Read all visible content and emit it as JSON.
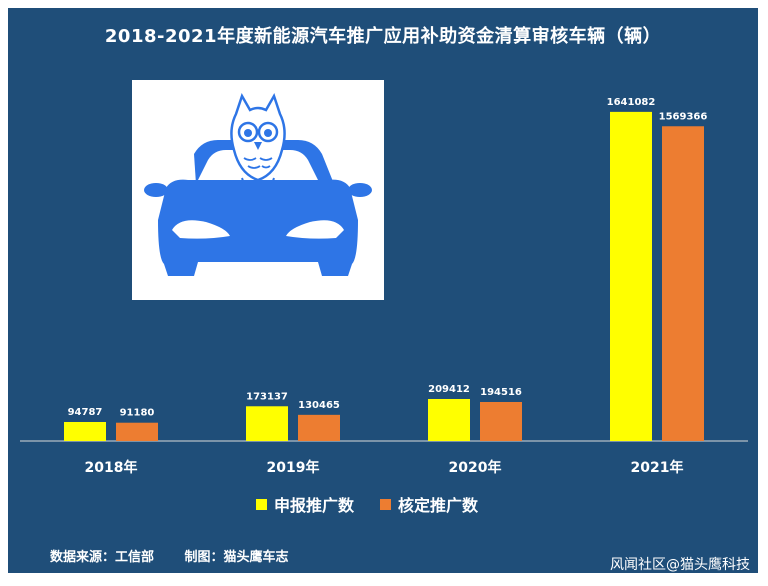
{
  "chart_data": {
    "type": "bar",
    "title": "2018-2021年度新能源汽车推广应用补助资金清算审核车辆（辆）",
    "categories": [
      "2018年",
      "2019年",
      "2020年",
      "2021年"
    ],
    "series": [
      {
        "name": "申报推广数",
        "color": "#ffff00",
        "values": [
          94787,
          173137,
          209412,
          1641082
        ]
      },
      {
        "name": "核定推广数",
        "color": "#ed7d31",
        "values": [
          91180,
          130465,
          194516,
          1569366
        ]
      }
    ],
    "ylim": [
      0,
      1800000
    ],
    "grid": false,
    "legend_position": "bottom"
  },
  "footer": {
    "source": "数据来源：工信部",
    "made_by": "制图：猫头鹰车志",
    "watermark": "风闻社区@猫头鹰科技"
  },
  "colors": {
    "background": "#1f4e79",
    "logo_blue": "#2e75e6"
  },
  "icons": [
    "car-icon",
    "owl-icon"
  ]
}
